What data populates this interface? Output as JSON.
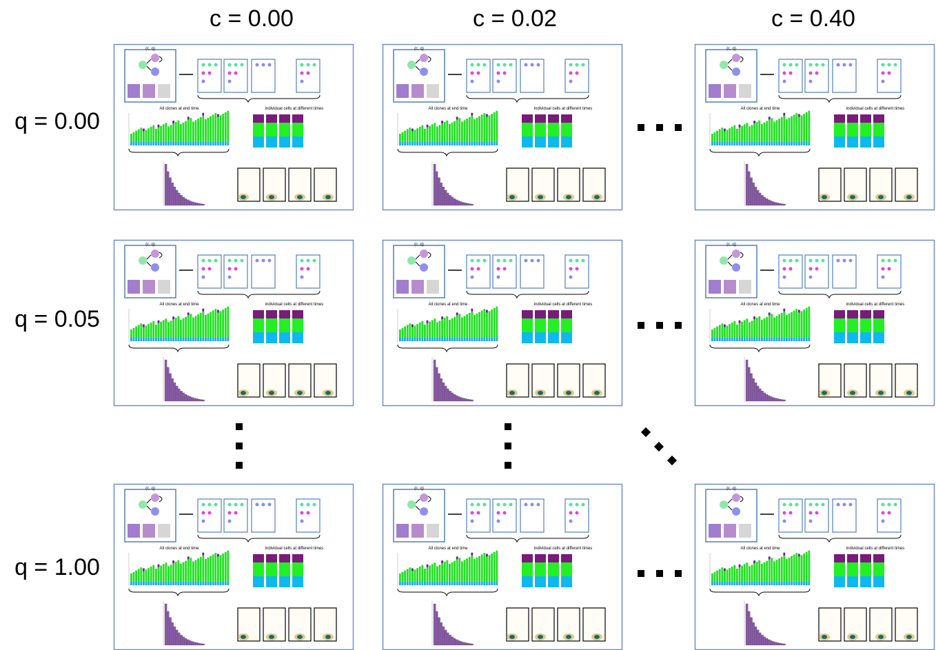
{
  "column_labels": [
    "c = 0.00",
    "c = 0.02",
    "c = 0.40"
  ],
  "row_labels": [
    "q = 0.00",
    "q = 0.05",
    "q = 1.00"
  ],
  "panel": {
    "params": "(c, q)",
    "clones_title": "All clones at end time",
    "cells_title": "individual cells at different times"
  }
}
